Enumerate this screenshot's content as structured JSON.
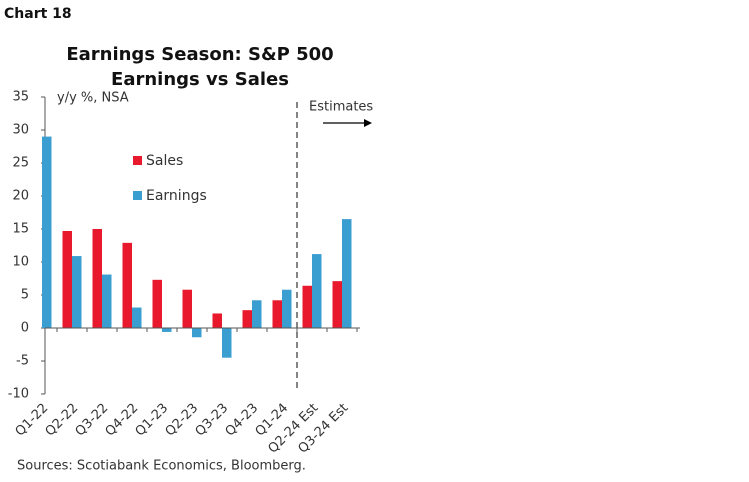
{
  "header": "Chart 18",
  "chart_data": {
    "type": "bar",
    "title": [
      "Earnings Season: S&P 500",
      "Earnings vs Sales"
    ],
    "y_label": "y/y %, NSA",
    "annotation": "Estimates",
    "source": "Sources: Scotiabank Economics, Bloomberg.",
    "categories": [
      "Q1-22",
      "Q2-22",
      "Q3-22",
      "Q4-22",
      "Q1-23",
      "Q2-23",
      "Q3-23",
      "Q4-23",
      "Q1-24",
      "Q2-24 Est",
      "Q3-24 Est"
    ],
    "series": [
      {
        "name": "Sales",
        "color": "#e8192c",
        "values": [
          null,
          14.7,
          15.0,
          12.9,
          7.3,
          5.8,
          2.2,
          2.7,
          4.2,
          6.4,
          7.1
        ]
      },
      {
        "name": "Earnings",
        "color": "#3b9ed0",
        "values": [
          29.0,
          10.9,
          8.1,
          3.1,
          -0.6,
          -1.4,
          -4.5,
          4.2,
          5.8,
          11.2,
          16.5
        ]
      }
    ],
    "ylim": [
      -10,
      35
    ],
    "yticks": [
      -10,
      -5,
      0,
      5,
      10,
      15,
      20,
      25,
      30,
      35
    ]
  }
}
